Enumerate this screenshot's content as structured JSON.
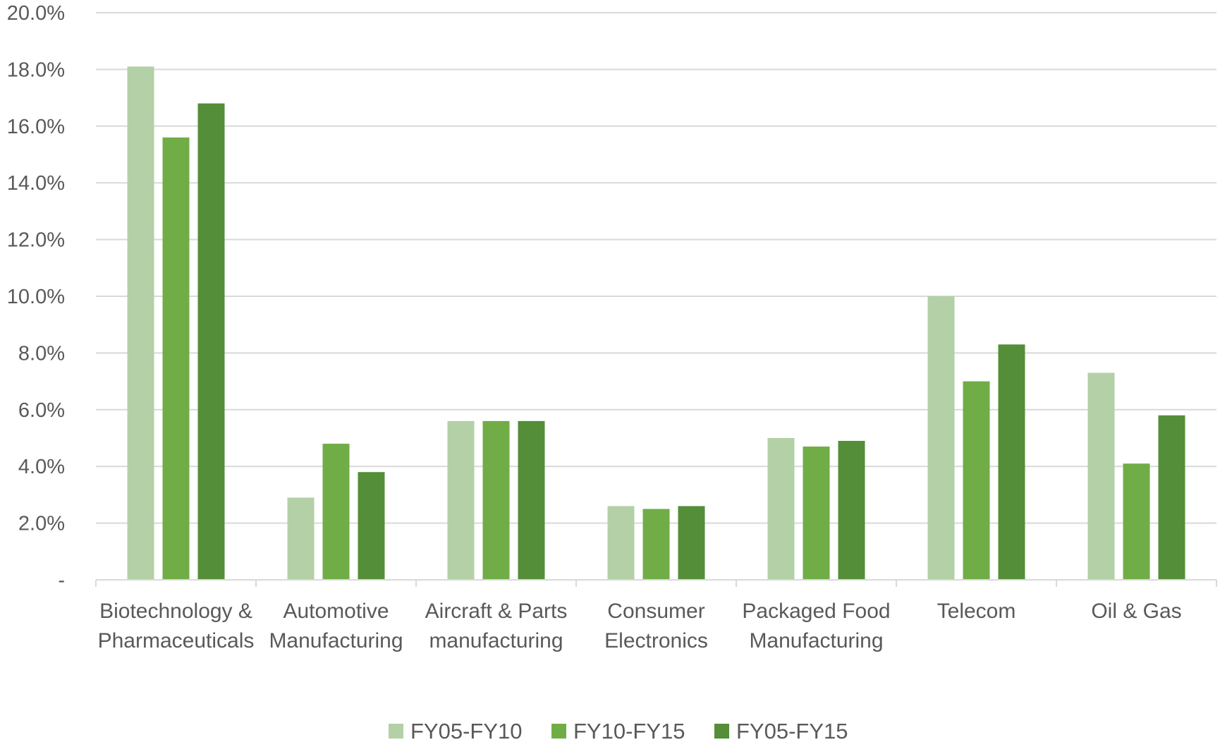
{
  "chart_data": {
    "type": "bar",
    "title": "",
    "xlabel": "",
    "ylabel": "",
    "ylim": [
      0,
      20
    ],
    "yticks": [
      {
        "value": 0,
        "label": "-"
      },
      {
        "value": 2,
        "label": "2.0%"
      },
      {
        "value": 4,
        "label": "4.0%"
      },
      {
        "value": 6,
        "label": "6.0%"
      },
      {
        "value": 8,
        "label": "8.0%"
      },
      {
        "value": 10,
        "label": "10.0%"
      },
      {
        "value": 12,
        "label": "12.0%"
      },
      {
        "value": 14,
        "label": "14.0%"
      },
      {
        "value": 16,
        "label": "16.0%"
      },
      {
        "value": 18,
        "label": "18.0%"
      },
      {
        "value": 20,
        "label": "20.0%"
      }
    ],
    "grid": true,
    "legend_position": "bottom",
    "categories": [
      [
        "Biotechnology &",
        "Pharmaceuticals"
      ],
      [
        "Automotive",
        "Manufacturing"
      ],
      [
        "Aircraft & Parts",
        "manufacturing"
      ],
      [
        "Consumer",
        "Electronics"
      ],
      [
        "Packaged Food",
        "Manufacturing"
      ],
      [
        "Telecom"
      ],
      [
        "Oil & Gas"
      ]
    ],
    "series": [
      {
        "name": "FY05-FY10",
        "color": "#b3d0a6",
        "values": [
          18.1,
          2.9,
          5.6,
          2.6,
          5.0,
          10.0,
          7.3
        ]
      },
      {
        "name": "FY10-FY15",
        "color": "#70ad47",
        "values": [
          15.6,
          4.8,
          5.6,
          2.5,
          4.7,
          7.0,
          4.1
        ]
      },
      {
        "name": "FY05-FY15",
        "color": "#548e38",
        "values": [
          16.8,
          3.8,
          5.6,
          2.6,
          4.9,
          8.3,
          5.8
        ]
      }
    ]
  }
}
